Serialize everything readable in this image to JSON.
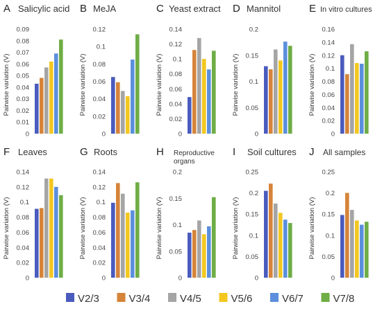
{
  "legend": [
    {
      "label": "V2/3",
      "color": "#4a5bbd"
    },
    {
      "label": "V3/4",
      "color": "#d6843a"
    },
    {
      "label": "V4/5",
      "color": "#a5a5a5"
    },
    {
      "label": "V5/6",
      "color": "#f3c720"
    },
    {
      "label": "V6/7",
      "color": "#5b8fdc"
    },
    {
      "label": "V7/8",
      "color": "#6fad46"
    }
  ],
  "chart_data": [
    {
      "type": "bar",
      "letter": "A",
      "title": "Salicylic acid",
      "ylabel": "Pairwise variation (V)",
      "ylim": [
        0,
        0.09
      ],
      "yticks": [
        "0",
        "0.01",
        "0.02",
        "0.03",
        "0.04",
        "0.05",
        "0.06",
        "0.07",
        "0.08",
        "0.09"
      ],
      "categories": [
        "V2/3",
        "V3/4",
        "V4/5",
        "V5/6",
        "V6/7",
        "V7/8"
      ],
      "values": [
        0.043,
        0.048,
        0.057,
        0.062,
        0.069,
        0.081
      ]
    },
    {
      "type": "bar",
      "letter": "B",
      "title": "MeJA",
      "ylabel": "Pairwise variation (V)",
      "ylim": [
        0,
        0.12
      ],
      "yticks": [
        "0",
        "0.02",
        "0.04",
        "0.06",
        "0.08",
        "0.1",
        "0.12"
      ],
      "categories": [
        "V2/3",
        "V3/4",
        "V4/5",
        "V5/6",
        "V6/7",
        "V7/8"
      ],
      "values": [
        0.065,
        0.059,
        0.049,
        0.043,
        0.085,
        0.114
      ]
    },
    {
      "type": "bar",
      "letter": "C",
      "title": "Yeast extract",
      "ylabel": "Pairwise variation (V)",
      "ylim": [
        0,
        0.14
      ],
      "yticks": [
        "0",
        "0.02",
        "0.04",
        "0.06",
        "0.08",
        "0.1",
        "0.12",
        "0.14"
      ],
      "categories": [
        "V2/3",
        "V3/4",
        "V4/5",
        "V5/6",
        "V6/7",
        "V7/8"
      ],
      "values": [
        0.049,
        0.112,
        0.128,
        0.1,
        0.086,
        0.111
      ]
    },
    {
      "type": "bar",
      "letter": "D",
      "title": "Mannitol",
      "ylabel": "Pairwise variation (V)",
      "ylim": [
        0,
        0.2
      ],
      "yticks": [
        "0",
        "0.05",
        "0.1",
        "0.15",
        "0.2"
      ],
      "categories": [
        "V2/3",
        "V3/4",
        "V4/5",
        "V5/6",
        "V6/7",
        "V7/8"
      ],
      "values": [
        0.129,
        0.123,
        0.161,
        0.14,
        0.176,
        0.168
      ]
    },
    {
      "type": "bar",
      "letter": "E",
      "title": "In vitro cultures",
      "ylabel": "Pairwise variation (V)",
      "ylim": [
        0,
        0.16
      ],
      "yticks": [
        "0",
        "0.02",
        "0.04",
        "0.06",
        "0.08",
        "0.1",
        "0.12",
        "0.14",
        "0.16"
      ],
      "categories": [
        "V2/3",
        "V3/4",
        "V4/5",
        "V5/6",
        "V6/7",
        "V7/8"
      ],
      "values": [
        0.12,
        0.091,
        0.137,
        0.108,
        0.107,
        0.126
      ]
    },
    {
      "type": "bar",
      "letter": "F",
      "title": "Leaves",
      "ylabel": "Pairwise variation (V)",
      "ylim": [
        0,
        0.14
      ],
      "yticks": [
        "0",
        "0.02",
        "0.04",
        "0.06",
        "0.08",
        "0.1",
        "0.12",
        "0.14"
      ],
      "categories": [
        "V2/3",
        "V3/4",
        "V4/5",
        "V5/6",
        "V6/7",
        "V7/8"
      ],
      "values": [
        0.091,
        0.092,
        0.131,
        0.131,
        0.12,
        0.109
      ]
    },
    {
      "type": "bar",
      "letter": "G",
      "title": "Roots",
      "ylabel": "Pairwise variation (V)",
      "ylim": [
        0,
        0.14
      ],
      "yticks": [
        "0",
        "0.02",
        "0.04",
        "0.06",
        "0.08",
        "0.1",
        "0.12",
        "0.14"
      ],
      "categories": [
        "V2/3",
        "V3/4",
        "V4/5",
        "V5/6",
        "V6/7",
        "V7/8"
      ],
      "values": [
        0.099,
        0.125,
        0.111,
        0.086,
        0.089,
        0.126
      ]
    },
    {
      "type": "bar",
      "letter": "H",
      "title": "Reproductive organs",
      "title_lines": [
        "Reproductive",
        "organs"
      ],
      "ylabel": "Pairwise variation (V)",
      "ylim": [
        0,
        0.2
      ],
      "yticks": [
        "0",
        "0.05",
        "0.1",
        "0.15",
        "0.2"
      ],
      "categories": [
        "V2/3",
        "V3/4",
        "V4/5",
        "V5/6",
        "V6/7",
        "V7/8"
      ],
      "values": [
        0.085,
        0.09,
        0.108,
        0.082,
        0.097,
        0.152
      ]
    },
    {
      "type": "bar",
      "letter": "I",
      "title": "Soil cultures",
      "ylabel": "Pairwise variation (V)",
      "ylim": [
        0,
        0.25
      ],
      "yticks": [
        "0",
        "0.05",
        "0.1",
        "0.15",
        "0.2",
        "0.25"
      ],
      "categories": [
        "V2/3",
        "V3/4",
        "V4/5",
        "V5/6",
        "V6/7",
        "V7/8"
      ],
      "values": [
        0.205,
        0.222,
        0.175,
        0.153,
        0.137,
        0.129
      ]
    },
    {
      "type": "bar",
      "letter": "J",
      "title": "All samples",
      "ylabel": "Pairwise variation (V)",
      "ylim": [
        0,
        0.25
      ],
      "yticks": [
        "0",
        "0.05",
        "0.1",
        "0.15",
        "0.2",
        "0.25"
      ],
      "categories": [
        "V2/3",
        "V3/4",
        "V4/5",
        "V5/6",
        "V6/7",
        "V7/8"
      ],
      "values": [
        0.148,
        0.2,
        0.16,
        0.135,
        0.125,
        0.132
      ]
    }
  ]
}
